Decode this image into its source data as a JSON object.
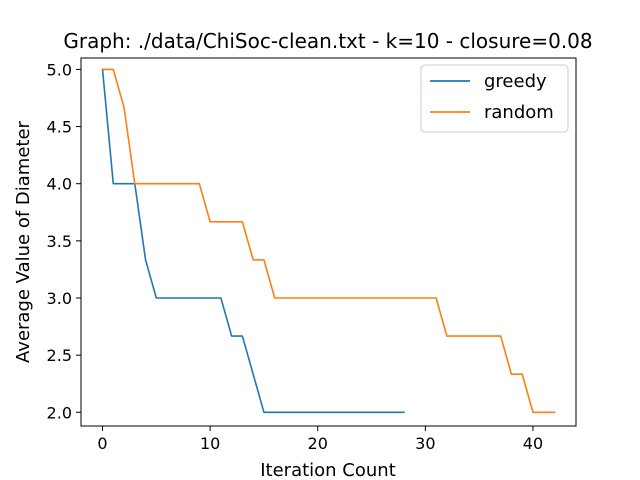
{
  "chart_data": {
    "type": "line",
    "title": "Graph: ./data/ChiSoc-clean.txt - k=10 - closure=0.08",
    "xlabel": "Iteration Count",
    "ylabel": "Average Value of Diameter",
    "xlim": [
      -2,
      44
    ],
    "ylim": [
      1.88,
      5.1
    ],
    "xticks": [
      0,
      10,
      20,
      30,
      40
    ],
    "yticks": [
      2.0,
      2.5,
      3.0,
      3.5,
      4.0,
      4.5,
      5.0
    ],
    "legend_position": "top-right",
    "grid": false,
    "series": [
      {
        "name": "greedy",
        "color": "#1f77b4",
        "x": [
          0,
          1,
          2,
          3,
          4,
          5,
          6,
          7,
          8,
          9,
          10,
          11,
          12,
          13,
          14,
          15,
          16,
          17,
          18,
          19,
          20,
          21,
          22,
          23,
          24,
          25,
          26,
          27,
          28
        ],
        "values": [
          5.0,
          4.0,
          4.0,
          4.0,
          3.333,
          3.0,
          3.0,
          3.0,
          3.0,
          3.0,
          3.0,
          3.0,
          2.667,
          2.667,
          2.333,
          2.0,
          2.0,
          2.0,
          2.0,
          2.0,
          2.0,
          2.0,
          2.0,
          2.0,
          2.0,
          2.0,
          2.0,
          2.0,
          2.0
        ]
      },
      {
        "name": "random",
        "color": "#ff7f0e",
        "x": [
          0,
          1,
          2,
          3,
          4,
          5,
          6,
          7,
          8,
          9,
          10,
          11,
          12,
          13,
          14,
          15,
          16,
          17,
          18,
          19,
          20,
          21,
          22,
          23,
          24,
          25,
          26,
          27,
          28,
          29,
          30,
          31,
          32,
          33,
          34,
          35,
          36,
          37,
          38,
          39,
          40,
          41,
          42
        ],
        "values": [
          5.0,
          5.0,
          4.667,
          4.0,
          4.0,
          4.0,
          4.0,
          4.0,
          4.0,
          4.0,
          3.667,
          3.667,
          3.667,
          3.667,
          3.333,
          3.333,
          3.0,
          3.0,
          3.0,
          3.0,
          3.0,
          3.0,
          3.0,
          3.0,
          3.0,
          3.0,
          3.0,
          3.0,
          3.0,
          3.0,
          3.0,
          3.0,
          2.667,
          2.667,
          2.667,
          2.667,
          2.667,
          2.667,
          2.333,
          2.333,
          2.0,
          2.0,
          2.0
        ]
      }
    ]
  }
}
